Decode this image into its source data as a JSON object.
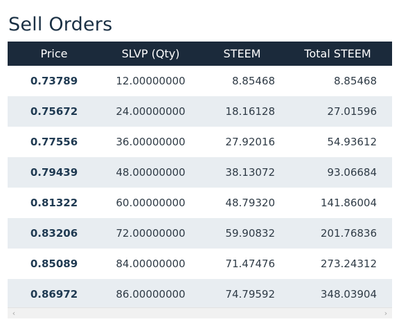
{
  "title": "Sell Orders",
  "table": {
    "headers": [
      "Price",
      "SLVP (Qty)",
      "STEEM",
      "Total STEEM"
    ],
    "rows": [
      [
        "0.73789",
        "12.00000000",
        "8.85468",
        "8.85468"
      ],
      [
        "0.75672",
        "24.00000000",
        "18.16128",
        "27.01596"
      ],
      [
        "0.77556",
        "36.00000000",
        "27.92016",
        "54.93612"
      ],
      [
        "0.79439",
        "48.00000000",
        "38.13072",
        "93.06684"
      ],
      [
        "0.81322",
        "60.00000000",
        "48.79320",
        "141.86004"
      ],
      [
        "0.83206",
        "72.00000000",
        "59.90832",
        "201.76836"
      ],
      [
        "0.85089",
        "84.00000000",
        "71.47476",
        "273.24312"
      ],
      [
        "0.86972",
        "86.00000000",
        "74.79592",
        "348.03904"
      ]
    ]
  },
  "scrollbar": {
    "left_icon": "chevron-left-icon",
    "right_icon": "chevron-right-icon",
    "left_glyph": "‹",
    "right_glyph": "›"
  },
  "colors": {
    "header_bg": "#1b2a3b",
    "stripe_bg": "#e8edf1",
    "title": "#1a3044"
  }
}
